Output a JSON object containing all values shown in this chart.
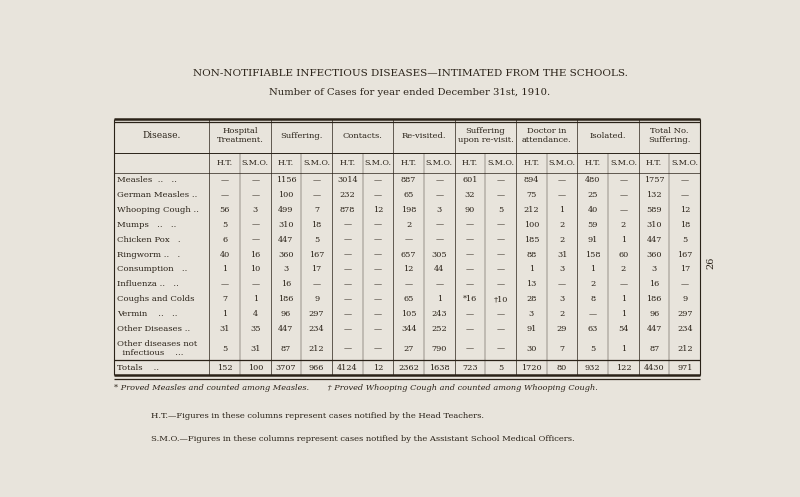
{
  "title": "NON-NOTIFIABLE INFECTIOUS DISEASES—INTIMATED FROM THE SCHOOLS.",
  "subtitle": "Number of Cases for year ended December 31st, 1910.",
  "bg_color": "#e8e4dc",
  "text_color": "#2a2218",
  "disease_header": "Disease.",
  "group_labels": [
    "Hospital\nTreatment.",
    "Suffering.",
    "Contacts.",
    "Re-visited.",
    "Suffering\nupon re-visit.",
    "Doctor in\nattendance.",
    "Isolated.",
    "Total No.\nSuffering."
  ],
  "rows": [
    [
      "Measles  ..   ..",
      "-",
      "-",
      "1156",
      "-",
      "3014",
      "-",
      "887",
      "-",
      "601",
      "-",
      "894",
      "-",
      "480",
      "-",
      "1757",
      "-"
    ],
    [
      "German Measles ..",
      "-",
      "-",
      "100",
      "-",
      "232",
      "-",
      "65",
      "-",
      "32",
      "-",
      "75",
      "-",
      "25",
      "-",
      "132",
      "-"
    ],
    [
      "Whooping Cough ..",
      "56",
      "3",
      "499",
      "7",
      "878",
      "12",
      "198",
      "3",
      "90",
      "5",
      "212",
      "1",
      "40",
      "-",
      "589",
      "12"
    ],
    [
      "Mumps   ..   ..",
      "5",
      "-",
      "310",
      "18",
      "-",
      "-",
      "2",
      "-",
      "-",
      "-",
      "100",
      "2",
      "59",
      "2",
      "310",
      "18"
    ],
    [
      "Chicken Pox   .",
      "6",
      "-",
      "447",
      "5",
      "-",
      "-",
      "-",
      "-",
      "-",
      "-",
      "185",
      "2",
      "91",
      "1",
      "447",
      "5"
    ],
    [
      "Ringworm ..   .",
      "40",
      "16",
      "360",
      "167",
      "-",
      "-",
      "657",
      "305",
      "-",
      "-",
      "88",
      "31",
      "158",
      "60",
      "360",
      "167"
    ],
    [
      "Consumption   ..",
      "1",
      "10",
      "3",
      "17",
      "-",
      "-",
      "12",
      "44",
      "-",
      "-",
      "1",
      "3",
      "1",
      "2",
      "3",
      "17"
    ],
    [
      "Influenza ..   ..",
      "-",
      "-",
      "16",
      "-",
      "-",
      "-",
      "-",
      "-",
      "-",
      "-",
      "13",
      "-",
      "2",
      "-",
      "16",
      "-"
    ],
    [
      "Coughs and Colds",
      "7",
      "1",
      "186",
      "9",
      "-",
      "-",
      "65",
      "1",
      "*16",
      "‡10",
      "28",
      "3",
      "8",
      "1",
      "186",
      "9"
    ],
    [
      "Vermin    ..   ..",
      "1",
      "4",
      "96",
      "297",
      "-",
      "-",
      "105",
      "243",
      "-",
      "-",
      "3",
      "2",
      "-",
      "1",
      "96",
      "297"
    ],
    [
      "Other Diseases ..",
      "31",
      "35",
      "447",
      "234",
      "-",
      "-",
      "344",
      "252",
      "-",
      "-",
      "91",
      "29",
      "63",
      "54",
      "447",
      "234"
    ],
    [
      "Other diseases not\n  infectious    ...",
      "5",
      "31",
      "87",
      "212",
      "-",
      "-",
      "27",
      "790",
      "-",
      "-",
      "30",
      "7",
      "5",
      "1",
      "87",
      "212"
    ],
    [
      "Totals    ..",
      "152",
      "100",
      "3707",
      "966",
      "4124",
      "12",
      "2362",
      "1638",
      "723",
      "5",
      "1720",
      "80",
      "932",
      "122",
      "4430",
      "971"
    ]
  ],
  "footnote1": "* Proved Measles and counted among Measles.       † Proved Whooping Cough and counted among Whooping Cough.",
  "footnote2": "H.T.—Figures in these columns represent cases notified by the Head Teachers.",
  "footnote3": "S.M.O.—Figures in these columns represent cases notified by the Assistant School Medical Officers.",
  "page_num": "26"
}
